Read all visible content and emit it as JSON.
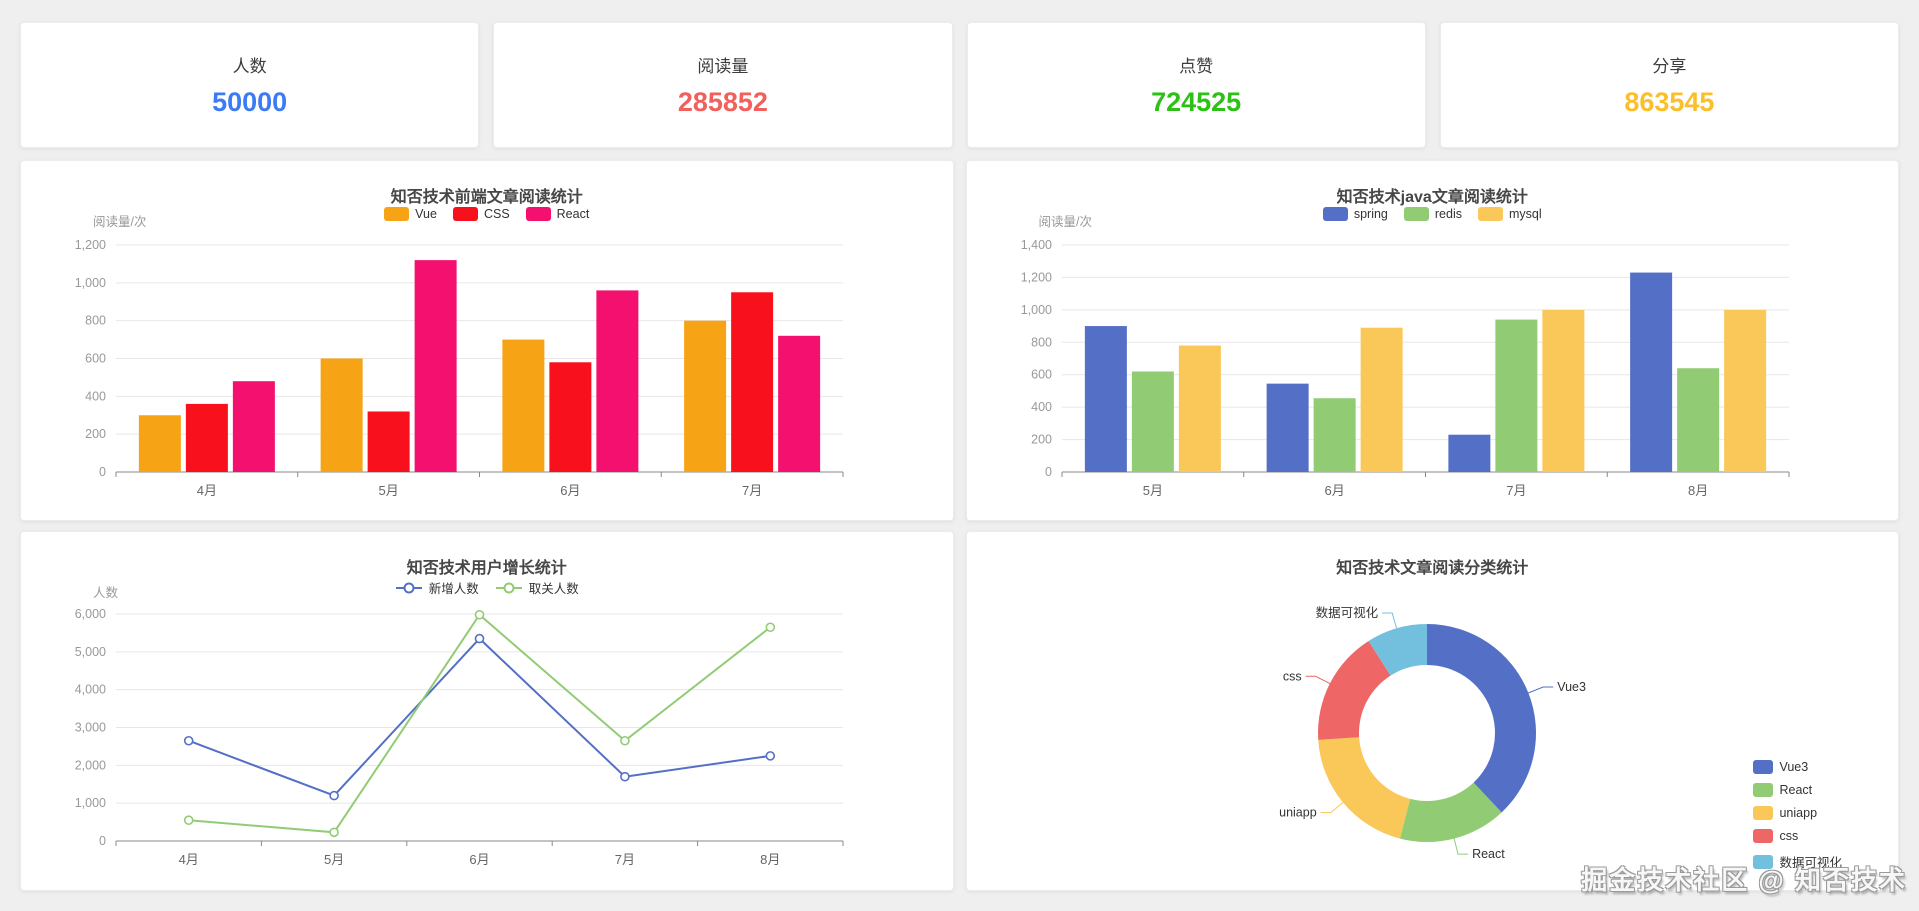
{
  "stats": [
    {
      "label": "人数",
      "value": "50000",
      "color": "#3D7BF5"
    },
    {
      "label": "阅读量",
      "value": "285852",
      "color": "#F2605C"
    },
    {
      "label": "点赞",
      "value": "724525",
      "color": "#2BC115"
    },
    {
      "label": "分享",
      "value": "863545",
      "color": "#FBBF2B"
    }
  ],
  "watermark": "掘金技术社区 @ 知否技术",
  "chart_data": [
    {
      "type": "bar",
      "title": "知否技术前端文章阅读统计",
      "ylabel": "阅读量/次",
      "categories": [
        "4月",
        "5月",
        "6月",
        "7月"
      ],
      "series": [
        {
          "name": "Vue",
          "color": "#F7A316",
          "values": [
            300,
            600,
            700,
            800
          ]
        },
        {
          "name": "CSS",
          "color": "#F8101C",
          "values": [
            360,
            320,
            580,
            950
          ]
        },
        {
          "name": "React",
          "color": "#F3106F",
          "values": [
            480,
            1120,
            960,
            720
          ]
        }
      ],
      "ylim": [
        0,
        1200
      ],
      "ystep": 200,
      "grid": true,
      "legend_position": "top"
    },
    {
      "type": "bar",
      "title": "知否技术java文章阅读统计",
      "ylabel": "阅读量/次",
      "categories": [
        "5月",
        "6月",
        "7月",
        "8月"
      ],
      "series": [
        {
          "name": "spring",
          "color": "#5470C6",
          "values": [
            900,
            545,
            230,
            1230
          ]
        },
        {
          "name": "redis",
          "color": "#91CC75",
          "values": [
            620,
            455,
            940,
            640
          ]
        },
        {
          "name": "mysql",
          "color": "#FAC858",
          "values": [
            780,
            890,
            1000,
            1000
          ]
        }
      ],
      "ylim": [
        0,
        1400
      ],
      "ystep": 200,
      "grid": true,
      "legend_position": "top"
    },
    {
      "type": "line",
      "title": "知否技术用户增长统计",
      "ylabel": "人数",
      "categories": [
        "4月",
        "5月",
        "6月",
        "7月",
        "8月"
      ],
      "series": [
        {
          "name": "新增人数",
          "color": "#5470C6",
          "values": [
            2650,
            1200,
            5350,
            1700,
            2250
          ]
        },
        {
          "name": "取关人数",
          "color": "#91CC75",
          "values": [
            550,
            230,
            5980,
            2650,
            5650
          ]
        }
      ],
      "ylim": [
        0,
        6000
      ],
      "ystep": 1000,
      "grid": true,
      "legend_position": "top"
    },
    {
      "type": "pie",
      "title": "知否技术文章阅读分类统计",
      "donut": true,
      "legend_position": "right",
      "slices": [
        {
          "label": "Vue3",
          "percent": 38,
          "color": "#5470C6"
        },
        {
          "label": "React",
          "percent": 16,
          "color": "#91CC75"
        },
        {
          "label": "uniapp",
          "percent": 20,
          "color": "#FAC858"
        },
        {
          "label": "css",
          "percent": 17,
          "color": "#EE6666"
        },
        {
          "label": "数据可视化",
          "percent": 9,
          "color": "#73C0DE"
        }
      ]
    }
  ]
}
